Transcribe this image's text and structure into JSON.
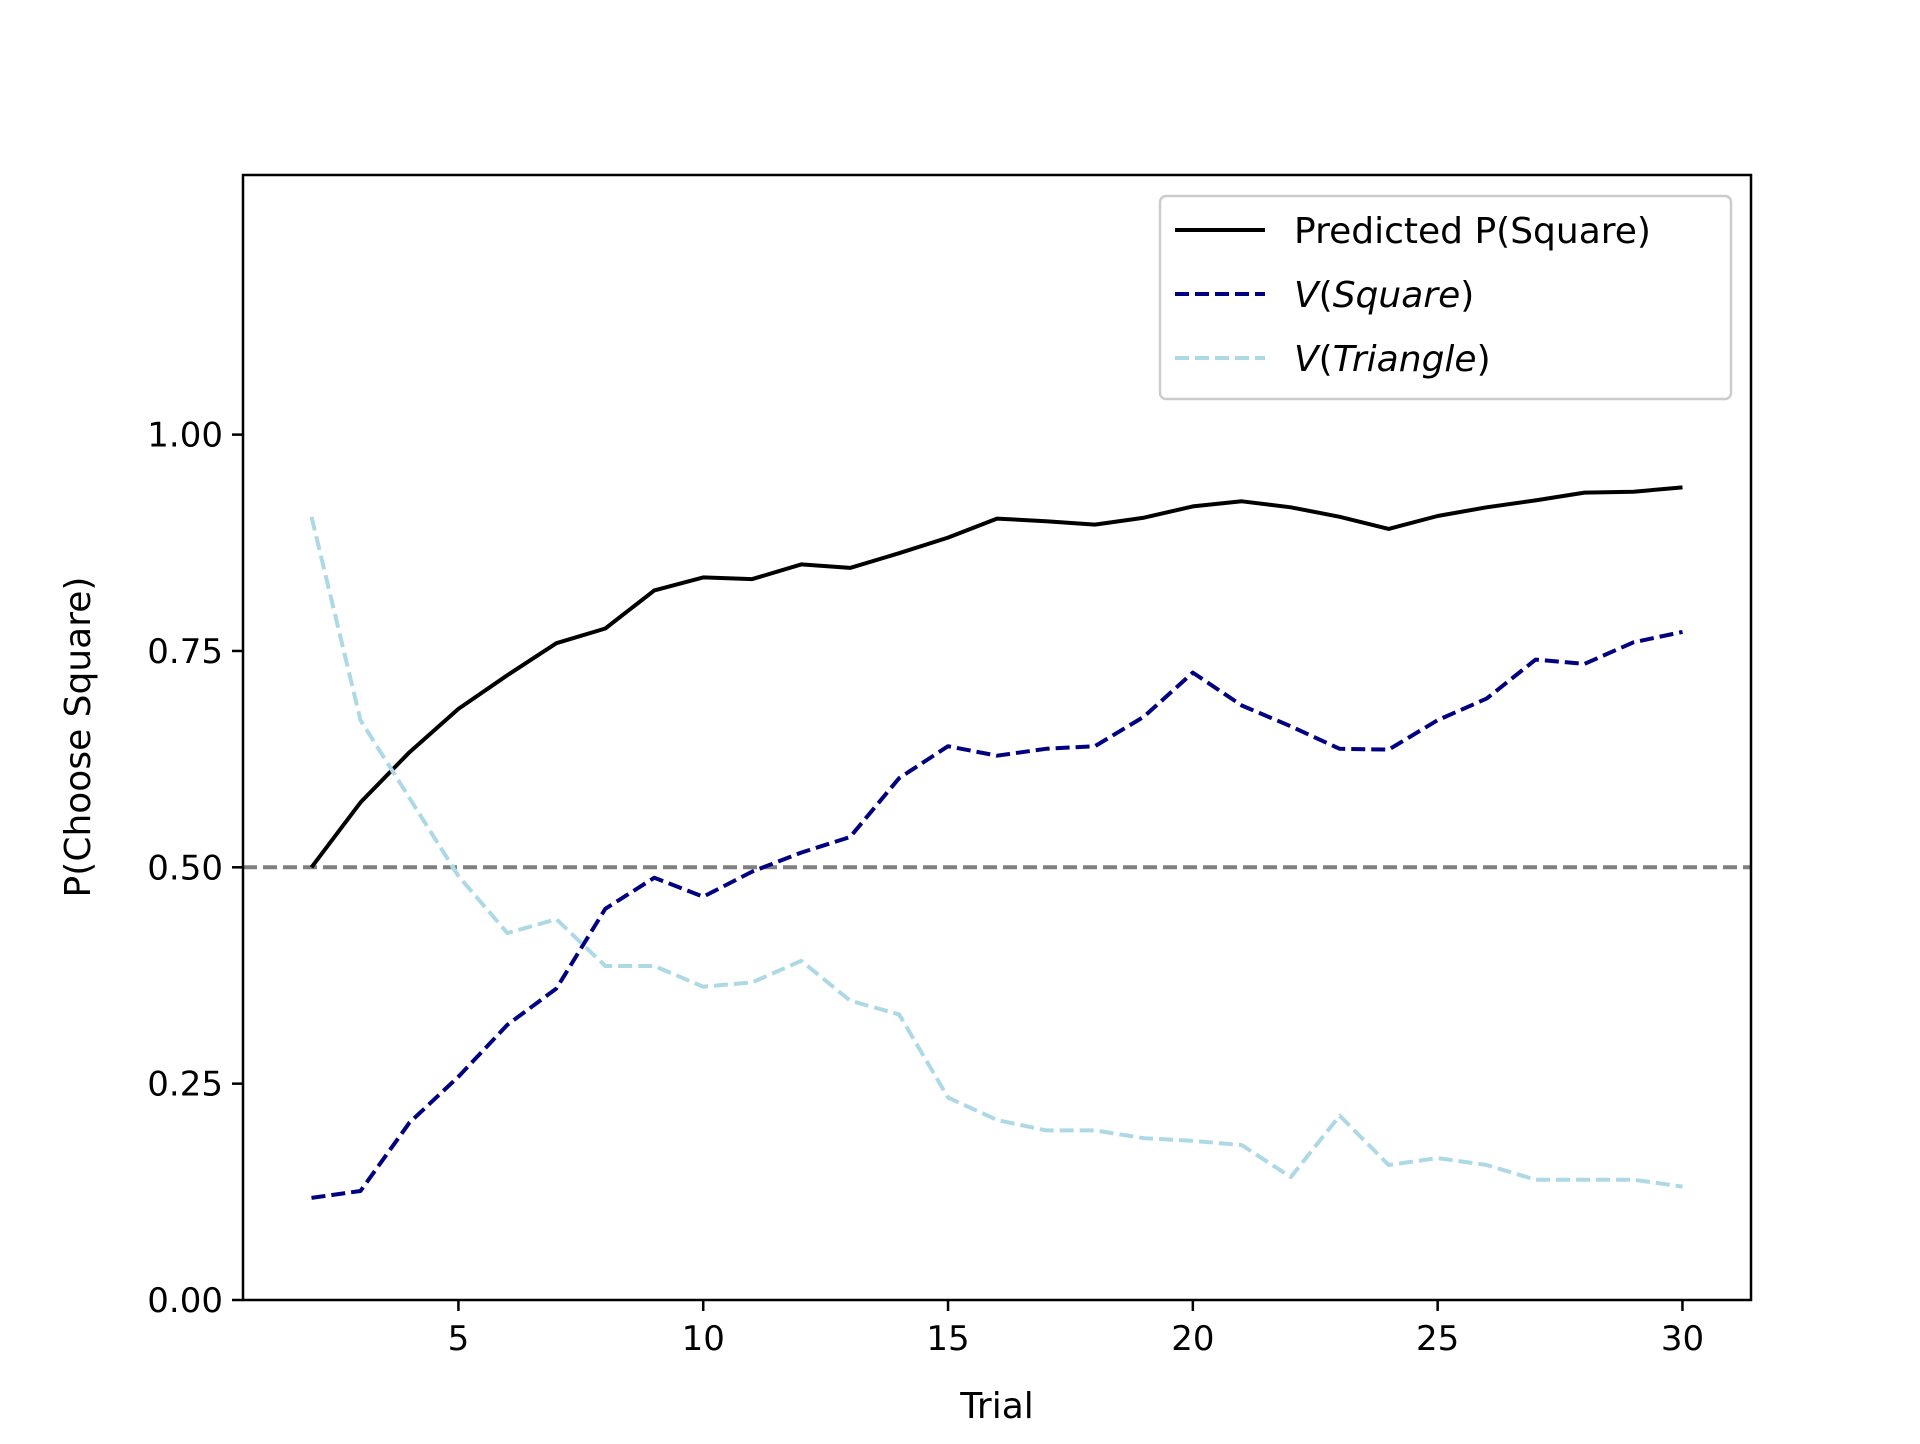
{
  "chart_data": {
    "type": "line",
    "xlabel": "Trial",
    "ylabel": "P(Choose Square)",
    "xlim": [
      0.6,
      31.4
    ],
    "ylim": [
      0,
      1.3
    ],
    "xticks": [
      5,
      10,
      15,
      20,
      25,
      30
    ],
    "yticks": [
      0.0,
      0.25,
      0.5,
      0.75,
      1.0
    ],
    "xtick_labels": [
      "5",
      "10",
      "15",
      "20",
      "25",
      "30"
    ],
    "ytick_labels": [
      "0.00",
      "0.25",
      "0.50",
      "0.75",
      "1.00"
    ],
    "grid": false,
    "legend_position": "upper right",
    "reference_line": {
      "y": 0.5,
      "color": "#808080",
      "style": "dashed"
    },
    "x": [
      2,
      3,
      4,
      5,
      6,
      7,
      8,
      9,
      10,
      11,
      12,
      13,
      14,
      15,
      16,
      17,
      18,
      19,
      20,
      21,
      22,
      23,
      24,
      25,
      26,
      27,
      28,
      29,
      30
    ],
    "series": [
      {
        "name": "Predicted P(Square)",
        "legend_parts": [
          {
            "text": "Predicted P(Square)",
            "italic": false
          }
        ],
        "color": "#000000",
        "style": "solid",
        "values": [
          0.5,
          0.575,
          0.633,
          0.683,
          0.722,
          0.759,
          0.776,
          0.82,
          0.835,
          0.833,
          0.85,
          0.846,
          0.863,
          0.881,
          0.903,
          0.9,
          0.896,
          0.904,
          0.917,
          0.923,
          0.916,
          0.905,
          0.891,
          0.906,
          0.916,
          0.924,
          0.933,
          0.934,
          0.939
        ]
      },
      {
        "name": "V(Square)",
        "legend_parts": [
          {
            "text": "V",
            "italic": true
          },
          {
            "text": "(",
            "italic": false
          },
          {
            "text": "Square",
            "italic": true
          },
          {
            "text": ")",
            "italic": false
          }
        ],
        "color": "#000080",
        "style": "dashed",
        "values": [
          0.118,
          0.126,
          0.205,
          0.258,
          0.318,
          0.36,
          0.452,
          0.488,
          0.466,
          0.495,
          0.517,
          0.535,
          0.603,
          0.64,
          0.629,
          0.637,
          0.64,
          0.674,
          0.725,
          0.687,
          0.663,
          0.637,
          0.636,
          0.67,
          0.695,
          0.74,
          0.735,
          0.76,
          0.772
        ]
      },
      {
        "name": "V(Triangle)",
        "legend_parts": [
          {
            "text": "V",
            "italic": true
          },
          {
            "text": "(",
            "italic": false
          },
          {
            "text": "Triangle",
            "italic": true
          },
          {
            "text": ")",
            "italic": false
          }
        ],
        "color": "#add8e6",
        "style": "dashed",
        "values": [
          0.905,
          0.67,
          0.58,
          0.49,
          0.424,
          0.44,
          0.386,
          0.386,
          0.362,
          0.367,
          0.392,
          0.346,
          0.33,
          0.234,
          0.208,
          0.196,
          0.196,
          0.187,
          0.184,
          0.179,
          0.142,
          0.213,
          0.156,
          0.164,
          0.156,
          0.139,
          0.139,
          0.139,
          0.131
        ]
      }
    ]
  }
}
